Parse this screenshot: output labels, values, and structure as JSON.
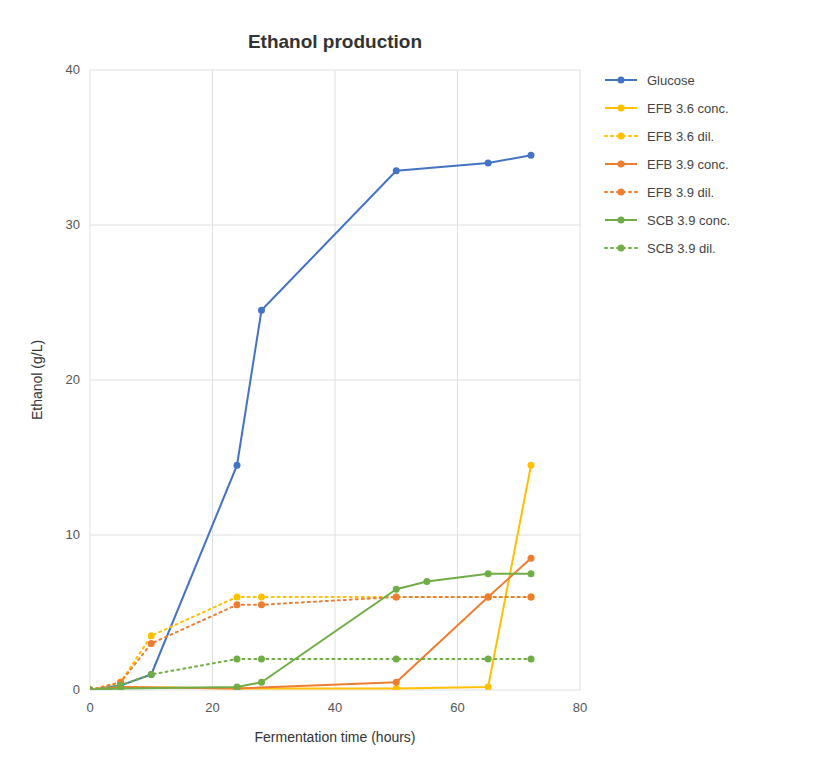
{
  "chart_data": {
    "type": "line",
    "title": "Ethanol production",
    "x_label": "Fermentation time (hours)",
    "y_label": "Ethanol (g/L)",
    "xlim": [
      0,
      80
    ],
    "ylim": [
      0,
      40
    ],
    "xticks": [
      0,
      20,
      40,
      60,
      80
    ],
    "yticks": [
      0,
      10,
      20,
      30,
      40
    ],
    "grid": true,
    "legend": "right",
    "series": [
      {
        "name": "Glucose",
        "color": "#4472C4",
        "line_style": "solid",
        "marker": "circle",
        "x": [
          0,
          5,
          10,
          24,
          28,
          50,
          65,
          72
        ],
        "values": [
          0,
          0.3,
          1.0,
          14.5,
          24.5,
          33.5,
          34.0,
          34.5
        ]
      },
      {
        "name": "EFB 3.6 conc.",
        "color": "#FFC000",
        "line_style": "solid",
        "marker": "circle",
        "x": [
          0,
          5,
          24,
          50,
          65,
          72
        ],
        "values": [
          0,
          0.2,
          0.1,
          0.1,
          0.2,
          14.5
        ]
      },
      {
        "name": "EFB 3.6 dil.",
        "color": "#FFC000",
        "line_style": "dotted",
        "marker": "circle",
        "x": [
          0,
          5,
          10,
          24,
          28,
          50,
          65,
          72
        ],
        "values": [
          0,
          0.5,
          3.5,
          6.0,
          6.0,
          6.0,
          6.0,
          6.0
        ]
      },
      {
        "name": "EFB 3.9 conc.",
        "color": "#ED7D31",
        "line_style": "solid",
        "marker": "circle",
        "x": [
          0,
          5,
          24,
          50,
          65,
          72
        ],
        "values": [
          0,
          0.2,
          0.1,
          0.5,
          6.0,
          8.5
        ]
      },
      {
        "name": "EFB 3.9 dil.",
        "color": "#ED7D31",
        "line_style": "dotted",
        "marker": "circle",
        "x": [
          0,
          5,
          10,
          24,
          28,
          50,
          65,
          72
        ],
        "values": [
          0,
          0.5,
          3.0,
          5.5,
          5.5,
          6.0,
          6.0,
          6.0
        ]
      },
      {
        "name": "SCB 3.9 conc.",
        "color": "#70AD47",
        "line_style": "solid",
        "marker": "circle",
        "x": [
          0,
          5,
          24,
          28,
          50,
          55,
          65,
          72
        ],
        "values": [
          0,
          0.1,
          0.2,
          0.5,
          6.5,
          7.0,
          7.5,
          7.5
        ]
      },
      {
        "name": "SCB 3.9 dil.",
        "color": "#70AD47",
        "line_style": "dotted",
        "marker": "circle",
        "x": [
          0,
          5,
          10,
          24,
          28,
          50,
          65,
          72
        ],
        "values": [
          0,
          0.3,
          1.0,
          2.0,
          2.0,
          2.0,
          2.0,
          2.0
        ]
      }
    ]
  }
}
